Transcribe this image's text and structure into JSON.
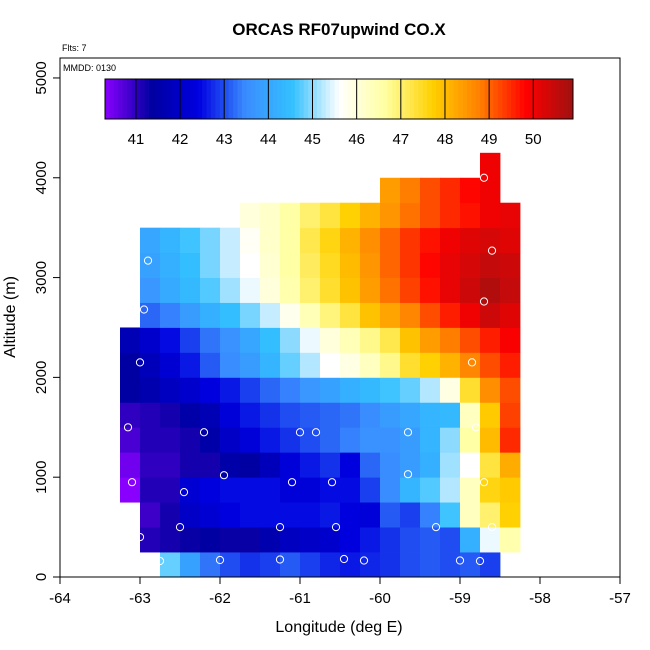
{
  "chart_data": {
    "type": "heatmap",
    "title": "ORCAS RF07upwind CO.X",
    "annotations": [
      "Flts: 7",
      "MMDD: 0130"
    ],
    "xlabel": "Longitude (deg E)",
    "ylabel": "Altitude (m)",
    "xlim": [
      -64,
      -57
    ],
    "ylim": [
      0,
      5200
    ],
    "x_ticks": [
      "-64",
      "-63",
      "-62",
      "-61",
      "-60",
      "-59",
      "-58",
      "-57"
    ],
    "y_ticks": [
      "0",
      "1000",
      "2000",
      "3000",
      "4000",
      "5000"
    ],
    "colorbar": {
      "range": [
        40.3,
        50.9
      ],
      "ticks": [
        "41",
        "42",
        "43",
        "44",
        "45",
        "46",
        "47",
        "48",
        "49",
        "50"
      ],
      "colors": [
        "#8a00ff",
        "#0000a0",
        "#0000e0",
        "#3a8cff",
        "#33c0ff",
        "#ffffff",
        "#ffffa0",
        "#ffd000",
        "#ff8000",
        "#ff0000",
        "#a01010"
      ]
    },
    "grid": {
      "lon_start": -63.25,
      "lon_step": 0.25,
      "alt_start": 0,
      "alt_step": 250,
      "rows": [
        {
          "alt": 0,
          "lon0": -62.75,
          "values": [
            44.8,
            43.9,
            43.3,
            43.0,
            42.8,
            42.9,
            43.1,
            42.9,
            42.7,
            42.6,
            42.7,
            42.8,
            43.0,
            43.1,
            43.0,
            43.1,
            42.9
          ]
        },
        {
          "alt": 250,
          "lon0": -63.0,
          "values": [
            41.1,
            41.2,
            41.3,
            41.4,
            41.3,
            41.3,
            41.6,
            41.9,
            42.0,
            42.1,
            42.4,
            42.6,
            42.8,
            43.0,
            43.1,
            43.0,
            44.2,
            45.5,
            46.5
          ]
        },
        {
          "alt": 500,
          "lon0": -63.0,
          "values": [
            40.9,
            41.2,
            42.0,
            42.2,
            42.4,
            42.5,
            42.5,
            42.5,
            42.5,
            42.6,
            42.4,
            42.3,
            43.1,
            42.9,
            43.4,
            44.6,
            46.3,
            47.0,
            47.7
          ]
        },
        {
          "alt": 750,
          "lon0": -63.25,
          "values": [
            40.3,
            41.1,
            41.1,
            42.2,
            42.4,
            42.5,
            42.5,
            42.5,
            42.3,
            42.3,
            42.5,
            42.5,
            42.9,
            43.5,
            44.3,
            44.7,
            45.2,
            46.3,
            47.6,
            47.8
          ]
        },
        {
          "alt": 1000,
          "lon0": -63.25,
          "values": [
            40.5,
            41.0,
            41.0,
            41.2,
            41.2,
            41.5,
            41.4,
            41.8,
            42.3,
            42.6,
            42.8,
            42.4,
            43.2,
            43.5,
            43.8,
            44.2,
            45.1,
            45.6,
            47.3,
            48.2
          ]
        },
        {
          "alt": 1250,
          "lon0": -63.25,
          "values": [
            40.8,
            41.1,
            41.1,
            41.2,
            41.5,
            42.0,
            42.3,
            42.6,
            42.8,
            43.0,
            43.2,
            43.4,
            43.6,
            43.6,
            43.8,
            44.3,
            45.0,
            46.6,
            48.0,
            49.5
          ]
        },
        {
          "alt": 1500,
          "lon0": -63.25,
          "values": [
            41.0,
            41.1,
            41.2,
            41.5,
            41.7,
            42.3,
            42.6,
            42.8,
            43.0,
            43.1,
            43.2,
            43.3,
            43.5,
            43.8,
            44.0,
            44.3,
            44.4,
            46.3,
            47.8,
            49.3
          ]
        },
        {
          "alt": 1750,
          "lon0": -63.25,
          "values": [
            41.4,
            41.6,
            41.9,
            42.1,
            42.4,
            42.6,
            42.9,
            43.2,
            43.4,
            43.7,
            43.9,
            44.2,
            44.4,
            44.6,
            44.8,
            45.2,
            45.9,
            47.4,
            48.6,
            49.2
          ]
        },
        {
          "alt": 2000,
          "lon0": -63.25,
          "values": [
            41.4,
            41.8,
            42.2,
            42.6,
            43.1,
            43.5,
            43.8,
            44.3,
            44.8,
            45.2,
            45.6,
            45.9,
            46.3,
            46.8,
            47.4,
            47.7,
            48.1,
            48.7,
            49.2,
            49.6
          ]
        },
        {
          "alt": 2250,
          "lon0": -63.25,
          "values": [
            41.7,
            42.1,
            42.5,
            42.9,
            43.3,
            43.6,
            44.0,
            44.5,
            45.0,
            45.5,
            46.0,
            46.4,
            46.8,
            47.2,
            47.9,
            48.4,
            48.8,
            49.2,
            49.6,
            49.9
          ]
        },
        {
          "alt": 2500,
          "lon0": -63.0,
          "values": [
            43.2,
            43.4,
            43.8,
            44.2,
            44.5,
            44.9,
            45.3,
            45.8,
            46.4,
            46.9,
            47.3,
            47.9,
            48.3,
            48.7,
            49.2,
            49.6,
            50.0,
            50.4,
            50.2
          ]
        },
        {
          "alt": 2750,
          "lon0": -63.0,
          "values": [
            43.7,
            44.1,
            44.4,
            44.7,
            45.1,
            45.5,
            46.0,
            46.5,
            47.0,
            47.4,
            47.9,
            48.4,
            48.9,
            49.3,
            49.7,
            50.1,
            50.4,
            50.7,
            50.5
          ]
        },
        {
          "alt": 3000,
          "lon0": -63.0,
          "values": [
            43.9,
            44.2,
            44.5,
            44.9,
            45.3,
            45.6,
            46.1,
            46.6,
            47.1,
            47.5,
            48.0,
            48.5,
            49.0,
            49.4,
            49.8,
            50.1,
            50.3,
            50.5,
            50.4
          ]
        },
        {
          "alt": 3250,
          "lon0": -63.0,
          "values": [
            44.0,
            44.3,
            44.6,
            44.9,
            45.3,
            45.7,
            46.2,
            46.6,
            47.2,
            47.6,
            48.1,
            48.6,
            49.0,
            49.4,
            49.7,
            50.0,
            50.2,
            50.3,
            50.2
          ]
        },
        {
          "alt": 3500,
          "lon0": -61.75,
          "values": [
            46.0,
            46.2,
            46.6,
            47.0,
            47.3,
            47.7,
            48.1,
            48.5,
            48.9,
            49.2,
            49.5,
            49.7,
            50.0,
            50.1
          ]
        },
        {
          "alt": 3750,
          "lon0": -60.0,
          "values": [
            48.4,
            48.8,
            49.2,
            49.5,
            49.8,
            50.0
          ]
        },
        {
          "alt": 4000,
          "lon0": -58.75,
          "values": [
            50.0
          ]
        }
      ]
    },
    "flight_points": [
      [
        -62.75,
        160
      ],
      [
        -62.0,
        170
      ],
      [
        -61.25,
        175
      ],
      [
        -60.45,
        180
      ],
      [
        -60.2,
        165
      ],
      [
        -59.0,
        165
      ],
      [
        -58.75,
        160
      ],
      [
        -63.0,
        400
      ],
      [
        -62.5,
        500
      ],
      [
        -61.25,
        500
      ],
      [
        -60.55,
        500
      ],
      [
        -59.3,
        500
      ],
      [
        -58.6,
        500
      ],
      [
        -62.45,
        850
      ],
      [
        -61.1,
        950
      ],
      [
        -60.6,
        950
      ],
      [
        -58.7,
        950
      ],
      [
        -63.1,
        950
      ],
      [
        -61.95,
        1020
      ],
      [
        -59.65,
        1030
      ],
      [
        -63.15,
        1500
      ],
      [
        -62.2,
        1450
      ],
      [
        -61.0,
        1450
      ],
      [
        -60.8,
        1450
      ],
      [
        -59.65,
        1450
      ],
      [
        -58.8,
        1500
      ],
      [
        -63.0,
        2150
      ],
      [
        -58.85,
        2150
      ],
      [
        -62.95,
        2680
      ],
      [
        -58.7,
        2760
      ],
      [
        -62.9,
        3170
      ],
      [
        -58.6,
        3270
      ],
      [
        -58.7,
        4000
      ]
    ]
  }
}
